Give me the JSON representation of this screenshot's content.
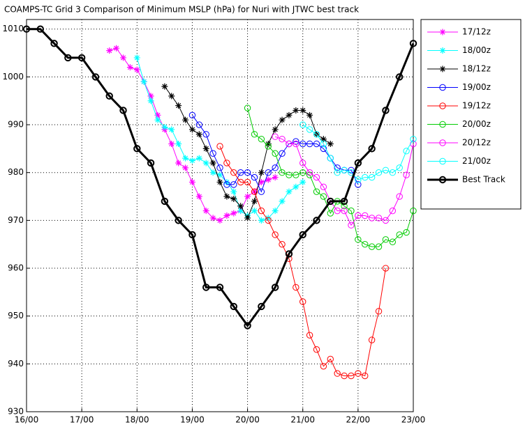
{
  "chart_data": {
    "type": "line",
    "title": "COAMPS-TC Grid 3 Comparison of Minimum MSLP (hPa) for Nuri with JTWC best track",
    "xlim": [
      16,
      23
    ],
    "xticks": [
      {
        "value": 16,
        "label": "16/00"
      },
      {
        "value": 17,
        "label": "17/00"
      },
      {
        "value": 18,
        "label": "18/00"
      },
      {
        "value": 19,
        "label": "19/00"
      },
      {
        "value": 20,
        "label": "20/00"
      },
      {
        "value": 21,
        "label": "21/00"
      },
      {
        "value": 22,
        "label": "22/00"
      },
      {
        "value": 23,
        "label": "23/00"
      }
    ],
    "ylim": [
      930,
      1012
    ],
    "yticks": [
      930,
      940,
      950,
      960,
      970,
      980,
      990,
      1000,
      1010
    ],
    "grid": true,
    "legend": "outside-right",
    "series": [
      {
        "name": "17/12z",
        "color": "#ff00ff",
        "marker": "star",
        "x": [
          17.5,
          17.625,
          17.75,
          17.875,
          18,
          18.125,
          18.25,
          18.375,
          18.5,
          18.625,
          18.75,
          18.875,
          19,
          19.125,
          19.25,
          19.375,
          19.5,
          19.625,
          19.75,
          19.875,
          20,
          20.125,
          20.25,
          20.375,
          20.5
        ],
        "values": [
          1005.5,
          1006,
          1004,
          1002,
          1001.5,
          999,
          996,
          992,
          989,
          986,
          982,
          981,
          978,
          975,
          972,
          970.5,
          970,
          971,
          971.5,
          972,
          975,
          976,
          978,
          978.5,
          979
        ]
      },
      {
        "name": "18/00z",
        "color": "#00ffff",
        "marker": "star",
        "x": [
          18,
          18.125,
          18.25,
          18.375,
          18.5,
          18.625,
          18.75,
          18.875,
          19,
          19.125,
          19.25,
          19.375,
          19.5,
          19.625,
          19.75,
          19.875,
          20,
          20.125,
          20.25,
          20.375,
          20.5,
          20.625,
          20.75,
          20.875,
          21
        ],
        "values": [
          1004,
          999,
          995,
          991,
          989.5,
          989,
          986,
          983,
          982.5,
          983,
          982,
          980,
          979.5,
          978,
          976,
          972,
          971,
          972,
          970,
          970.5,
          972,
          974,
          976,
          977,
          978
        ]
      },
      {
        "name": "18/12z",
        "color": "#000000",
        "marker": "star",
        "x": [
          18.5,
          18.625,
          18.75,
          18.875,
          19,
          19.125,
          19.25,
          19.375,
          19.5,
          19.625,
          19.75,
          19.875,
          20,
          20.125,
          20.25,
          20.375,
          20.5,
          20.625,
          20.75,
          20.875,
          21,
          21.125,
          21.25,
          21.375,
          21.5
        ],
        "values": [
          998,
          996,
          994,
          991,
          989,
          988,
          985,
          982,
          978,
          975,
          974.5,
          973,
          970.5,
          974,
          980,
          986,
          989,
          991,
          992,
          993,
          993,
          992,
          988,
          987,
          986
        ]
      },
      {
        "name": "19/00z",
        "color": "#0000ff",
        "marker": "circle",
        "x": [
          19,
          19.125,
          19.25,
          19.375,
          19.5,
          19.625,
          19.75,
          19.875,
          20,
          20.125,
          20.25,
          20.375,
          20.5,
          20.625,
          20.75,
          20.875,
          21,
          21.125,
          21.25,
          21.375,
          21.5,
          21.625,
          21.75,
          21.875,
          22
        ],
        "values": [
          992,
          990,
          988,
          984,
          981,
          977.5,
          977.5,
          980,
          980,
          979,
          976,
          980,
          981,
          984,
          986,
          986.5,
          986,
          986,
          986,
          985,
          983,
          981,
          980.5,
          980.5,
          977.5
        ]
      },
      {
        "name": "19/12z",
        "color": "#ff0000",
        "marker": "circle",
        "x": [
          19.5,
          19.625,
          19.75,
          19.875,
          20,
          20.125,
          20.25,
          20.375,
          20.5,
          20.625,
          20.75,
          20.875,
          21,
          21.125,
          21.25,
          21.375,
          21.5,
          21.625,
          21.75,
          21.875,
          22,
          22.125,
          22.25,
          22.375,
          22.5
        ],
        "values": [
          985.5,
          982,
          980,
          978,
          978,
          976,
          972,
          970,
          967,
          965,
          962,
          956,
          953,
          946,
          943,
          939.5,
          941,
          938,
          937.5,
          937.5,
          938,
          937.5,
          945,
          951,
          960
        ]
      },
      {
        "name": "20/00z",
        "color": "#00cc00",
        "marker": "circle",
        "x": [
          20,
          20.125,
          20.25,
          20.375,
          20.5,
          20.625,
          20.75,
          20.875,
          21,
          21.125,
          21.25,
          21.375,
          21.5,
          21.625,
          21.75,
          21.875,
          22,
          22.125,
          22.25,
          22.375,
          22.5,
          22.625,
          22.75,
          22.875,
          23
        ],
        "values": [
          993.5,
          988,
          987,
          985.5,
          984,
          980,
          979.5,
          979.5,
          980,
          979.5,
          976,
          975,
          971.5,
          974,
          973,
          972,
          966,
          965,
          964.5,
          964.5,
          966,
          965.5,
          967,
          967.5,
          972
        ]
      },
      {
        "name": "20/12z",
        "color": "#ff00ff",
        "marker": "circle",
        "x": [
          20.5,
          20.625,
          20.75,
          20.875,
          21,
          21.125,
          21.25,
          21.375,
          21.5,
          21.625,
          21.75,
          21.875,
          22,
          22.125,
          22.25,
          22.375,
          22.5,
          22.625,
          22.75,
          22.875,
          23
        ],
        "values": [
          987.5,
          987,
          986,
          986,
          982,
          980,
          979,
          977,
          974,
          972,
          972,
          969,
          971,
          971,
          970.5,
          970.5,
          970,
          972,
          975,
          979.5,
          986
        ]
      },
      {
        "name": "21/00z",
        "color": "#00ffff",
        "marker": "circle",
        "x": [
          21,
          21.125,
          21.25,
          21.375,
          21.5,
          21.625,
          21.75,
          21.875,
          22,
          22.125,
          22.25,
          22.375,
          22.5,
          22.625,
          22.75,
          22.875,
          23
        ],
        "values": [
          990,
          989,
          988,
          986,
          983,
          980,
          980.5,
          980,
          978.5,
          979,
          979,
          980,
          980.5,
          980,
          981,
          984.5,
          987
        ]
      },
      {
        "name": "Best Track",
        "color": "#000000",
        "marker": "circle",
        "width": 3,
        "x": [
          16,
          16.25,
          16.5,
          16.75,
          17,
          17.25,
          17.5,
          17.75,
          18,
          18.25,
          18.5,
          18.75,
          19,
          19.25,
          19.5,
          19.75,
          20,
          20.25,
          20.5,
          20.75,
          21,
          21.25,
          21.5,
          21.75,
          22,
          22.25,
          22.5,
          22.75,
          23
        ],
        "values": [
          1010,
          1010,
          1007,
          1004,
          1004,
          1000,
          996,
          993,
          985,
          982,
          974,
          970,
          967,
          956,
          956,
          952,
          948,
          952,
          956,
          963,
          967,
          970,
          974,
          974,
          982,
          985,
          993,
          1000,
          1007
        ]
      }
    ]
  }
}
